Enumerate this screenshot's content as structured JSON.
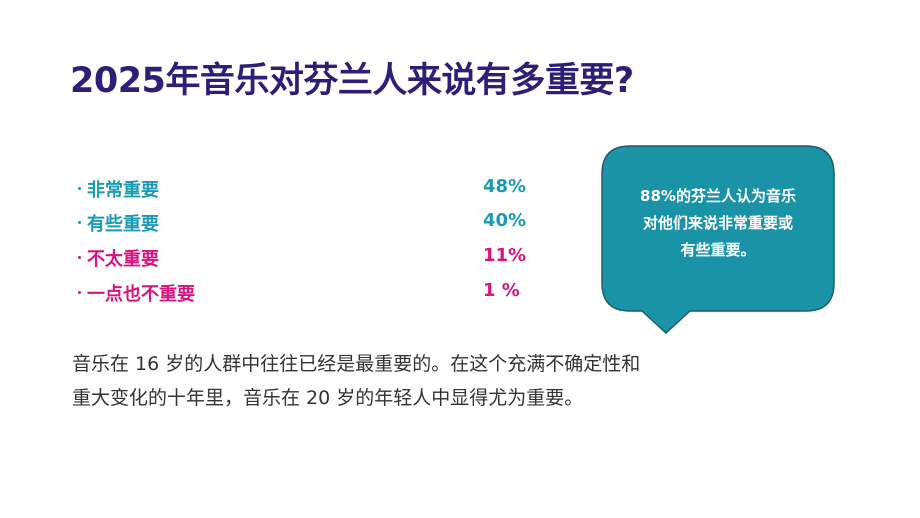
{
  "title": "2025年音乐对芬兰人来说有多重要?",
  "items": [
    {
      "label": "非常重要",
      "value": "48%"
    },
    {
      "label": "有些重要",
      "value": "40%"
    },
    {
      "label": "不太重要",
      "value": "11%"
    },
    {
      "label": "一点也不重要",
      "value": "1 %"
    }
  ],
  "callout": {
    "lines": [
      "88%的芬兰人认为音乐",
      "对他们来说非常重要或",
      "有些重要。"
    ]
  },
  "body": {
    "lines": [
      "音乐在 16 岁的人群中往往已经是最重要的。在这个充满不确定性和",
      "重大变化的十年里，音乐在 20 岁的年轻人中显得尤为重要。"
    ]
  }
}
